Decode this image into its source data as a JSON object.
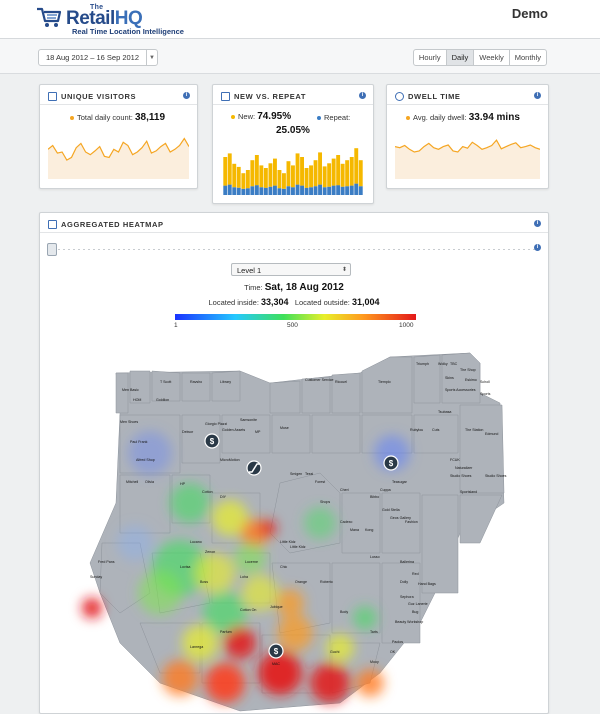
{
  "header": {
    "logo_the": "The",
    "logo_retail": "Retail",
    "logo_hq": "HQ",
    "tagline": "Real Time Location Intelligence",
    "account": "Demo"
  },
  "toolbar": {
    "date_range": "18 Aug 2012 – 16 Sep 2012",
    "periods": [
      "Hourly",
      "Daily",
      "Weekly",
      "Monthly"
    ],
    "active_period": "Daily"
  },
  "cards": {
    "unique_visitors": {
      "title": "UNIQUE VISITORS",
      "metric_label": "Total daily count:",
      "metric_value": "38,119",
      "color": "#f5a623",
      "series": [
        0.55,
        0.62,
        0.48,
        0.5,
        0.35,
        0.4,
        0.58,
        0.66,
        0.5,
        0.45,
        0.52,
        0.6,
        0.42,
        0.4,
        0.55,
        0.5,
        0.68,
        0.62,
        0.45,
        0.5,
        0.58,
        0.7,
        0.48,
        0.52,
        0.6,
        0.66,
        0.5,
        0.55,
        0.62,
        0.75,
        0.6
      ]
    },
    "new_vs_repeat": {
      "title": "NEW VS. REPEAT",
      "new_label": "New:",
      "new_value": "74.95%",
      "repeat_label": "Repeat:",
      "repeat_value": "25.05%",
      "new_color": "#f5b800",
      "repeat_color": "#3b7dc4",
      "new_series": [
        0.55,
        0.6,
        0.45,
        0.4,
        0.3,
        0.35,
        0.5,
        0.58,
        0.42,
        0.38,
        0.45,
        0.52,
        0.35,
        0.3,
        0.48,
        0.42,
        0.6,
        0.55,
        0.38,
        0.42,
        0.5,
        0.62,
        0.4,
        0.45,
        0.52,
        0.58,
        0.44,
        0.5,
        0.55,
        0.68,
        0.5
      ],
      "repeat_series": [
        0.18,
        0.2,
        0.15,
        0.14,
        0.12,
        0.13,
        0.17,
        0.19,
        0.15,
        0.14,
        0.16,
        0.18,
        0.13,
        0.12,
        0.17,
        0.15,
        0.2,
        0.18,
        0.14,
        0.15,
        0.17,
        0.2,
        0.15,
        0.16,
        0.18,
        0.19,
        0.16,
        0.17,
        0.18,
        0.22,
        0.17
      ]
    },
    "dwell_time": {
      "title": "DWELL TIME",
      "metric_label": "Avg. daily dwell:",
      "metric_value": "33.94 mins",
      "color": "#f5a623",
      "series": [
        0.6,
        0.58,
        0.62,
        0.55,
        0.5,
        0.52,
        0.6,
        0.66,
        0.58,
        0.55,
        0.6,
        0.63,
        0.52,
        0.5,
        0.6,
        0.57,
        0.68,
        0.62,
        0.55,
        0.58,
        0.62,
        0.72,
        0.56,
        0.6,
        0.64,
        0.67,
        0.58,
        0.6,
        0.63,
        0.58,
        0.55
      ]
    }
  },
  "heatmap": {
    "title": "AGGREGATED HEATMAP",
    "level": "Level 1",
    "time_label": "Time:",
    "time_value": "Sat, 18 Aug 2012",
    "inside_label": "Located inside:",
    "inside_value": "33,304",
    "outside_label": "Located outside:",
    "outside_value": "31,004",
    "scale_min": "1",
    "scale_mid": "500",
    "scale_max": "1000",
    "store_labels": [
      "Men Basic",
      "HOM",
      "T Scott",
      "Ravsho",
      "Library",
      "Goldlion",
      "Men Shoes",
      "Paul Frank",
      "Delwor",
      "Giorgio Piazzi",
      "Golden Assets",
      "Samsonite",
      "MP",
      "Muse",
      "Customer Service",
      "Ricouel",
      "Tiemplo",
      "Triumph",
      "Wolky",
      "TBC",
      "The Shop",
      "Skins",
      "Eskimo",
      "Scholl",
      "Sports Accessories",
      "Sports",
      "Tsubasa",
      "Rubylou",
      "Cuts",
      "The Station",
      "Edmund",
      "Alfred Shop",
      "FCUK",
      "Naturalizer",
      "Studio Shoes",
      "Studio Shoes",
      "Sportsland",
      "MicroMotion",
      "Smigen",
      "Tessi",
      "Forest",
      "Cheri",
      "Cuppa",
      "Teasugar",
      "Mitchell",
      "Olivia",
      "HP",
      "Cotton",
      "DIY",
      "Shops",
      "Bibbo",
      "Gold Stella",
      "Geos Gallery",
      "Fashion",
      "Cadexo",
      "Mana",
      "Kong",
      "Little Kidz",
      "Little Kidz",
      "Lucano",
      "Zenon",
      "Lucerne",
      "Chic",
      "Lovisa",
      "Boss",
      "Loha",
      "Orange",
      "Roberto",
      "Jubique",
      "Lusso",
      "Ballerina",
      "Red",
      "Dolly",
      "Hand Bags",
      "Sephora",
      "Guz Lanerie",
      "Beauty Workshop",
      "Bug",
      "Body",
      "Tarts",
      "Paolos",
      "MAC",
      "OK",
      "Guchi",
      "Mooy",
      "Parfum",
      "Lanrega",
      "Fred Pans",
      "Sunday",
      "Cotton On"
    ]
  }
}
